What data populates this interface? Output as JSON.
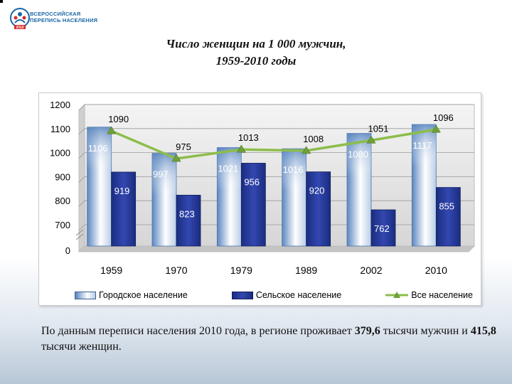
{
  "header": {
    "logo_line1": "ВСЕРОССИЙСКАЯ",
    "logo_line2": "ПЕРЕПИСЬ НАСЕЛЕНИЯ",
    "logo_badge": "2010"
  },
  "title": {
    "line1": "Число женщин на 1 000 мужчин,",
    "line2": "1959-2010 годы"
  },
  "chart_data": {
    "type": "bar",
    "categories": [
      "1959",
      "1970",
      "1979",
      "1989",
      "2002",
      "2010"
    ],
    "series": [
      {
        "name": "Городское население",
        "kind": "bar",
        "values": [
          1106,
          997,
          1021,
          1016,
          1080,
          1117
        ]
      },
      {
        "name": "Сельское население",
        "kind": "bar",
        "values": [
          919,
          823,
          956,
          920,
          762,
          855
        ]
      },
      {
        "name": "Все население",
        "kind": "line",
        "values": [
          1090,
          975,
          1013,
          1008,
          1051,
          1096
        ]
      }
    ],
    "y_ticks": [
      "0",
      "700",
      "800",
      "900",
      "1000",
      "1100",
      "1200"
    ],
    "ylim": [
      700,
      1200
    ],
    "axis_break": true,
    "grid": true,
    "legend_position": "bottom",
    "colors": {
      "urban_dark": "#5a86c0",
      "urban_light": "#ffffff",
      "rural_dark": "#1a2d80",
      "rural_light": "#3347b0",
      "line": "#8cbd4a",
      "plot_back": "#dcdcdc"
    }
  },
  "legend": {
    "urban": "Городское население",
    "rural": "Сельское население",
    "total": "Все население"
  },
  "footnote": {
    "part1": "По данным переписи  населения  2010 года, в регионе проживает ",
    "value_men": "379,6",
    "part2": " тысячи мужчин  и ",
    "value_women": "415,8",
    "part3": " тысячи женщин."
  }
}
